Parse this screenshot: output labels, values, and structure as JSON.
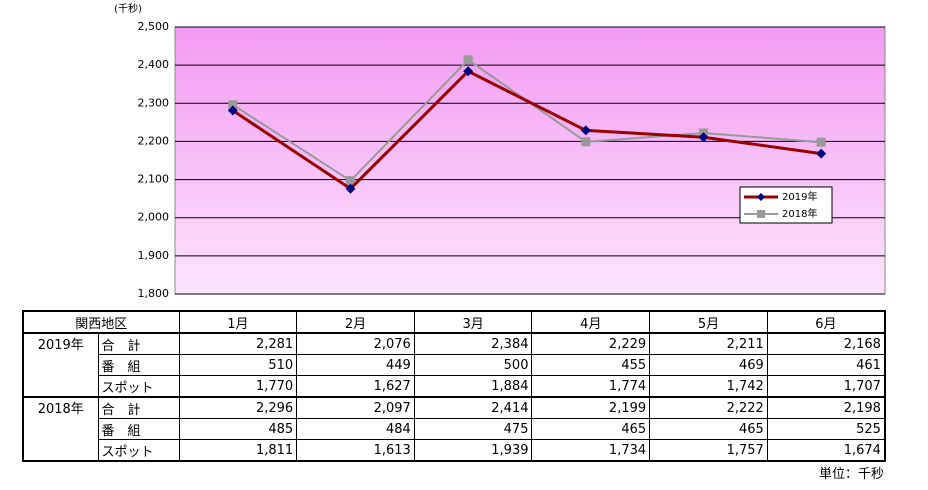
{
  "chart_data": {
    "type": "line",
    "unit_label": "(千秒)",
    "categories": [
      "1月",
      "2月",
      "3月",
      "4月",
      "5月",
      "6月"
    ],
    "series": [
      {
        "name": "2019年",
        "color": "#990000",
        "marker_color": "#000080",
        "marker": "diamond",
        "values": [
          2281,
          2076,
          2384,
          2229,
          2211,
          2168
        ]
      },
      {
        "name": "2018年",
        "color": "#999999",
        "marker_color": "#999999",
        "marker": "square",
        "values": [
          2296,
          2097,
          2414,
          2199,
          2222,
          2198
        ]
      }
    ],
    "ylim": [
      1800,
      2500
    ],
    "yticks": [
      {
        "value": 1800,
        "label": "1,800"
      },
      {
        "value": 1900,
        "label": "1,900"
      },
      {
        "value": 2000,
        "label": "2,000"
      },
      {
        "value": 2100,
        "label": "2,100"
      },
      {
        "value": 2200,
        "label": "2,200"
      },
      {
        "value": 2300,
        "label": "2,300"
      },
      {
        "value": 2400,
        "label": "2,400"
      },
      {
        "value": 2500,
        "label": "2,500"
      }
    ],
    "grid": true,
    "legend": "right"
  },
  "table": {
    "corner": "関西地区",
    "groups": [
      {
        "year": "2019年",
        "rows": [
          {
            "label": "合　計",
            "cells": [
              "2,281",
              "2,076",
              "2,384",
              "2,229",
              "2,211",
              "2,168"
            ]
          },
          {
            "label": "番　組",
            "cells": [
              "510",
              "449",
              "500",
              "455",
              "469",
              "461"
            ]
          },
          {
            "label": "スポット",
            "cells": [
              "1,770",
              "1,627",
              "1,884",
              "1,774",
              "1,742",
              "1,707"
            ]
          }
        ]
      },
      {
        "year": "2018年",
        "rows": [
          {
            "label": "合　計",
            "cells": [
              "2,296",
              "2,097",
              "2,414",
              "2,199",
              "2,222",
              "2,198"
            ]
          },
          {
            "label": "番　組",
            "cells": [
              "485",
              "484",
              "475",
              "465",
              "465",
              "525"
            ]
          },
          {
            "label": "スポット",
            "cells": [
              "1,811",
              "1,613",
              "1,939",
              "1,734",
              "1,757",
              "1,674"
            ]
          }
        ]
      }
    ],
    "unit": "単位：千秒"
  }
}
